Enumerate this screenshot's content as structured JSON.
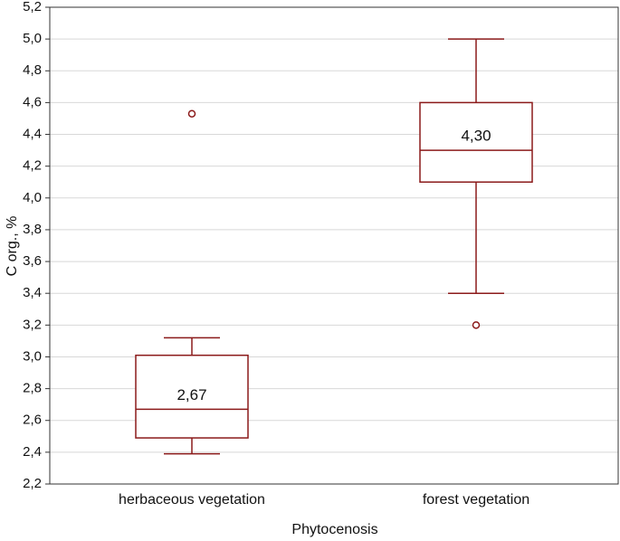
{
  "chart_data": {
    "type": "box",
    "x_label": "Phytocenosis",
    "y_label": "C org., %",
    "categories": [
      "herbaceous vegetation",
      "forest vegetation"
    ],
    "whisker_low": [
      2.39,
      3.4
    ],
    "q1": [
      2.49,
      4.1
    ],
    "values": [
      2.67,
      4.3
    ],
    "value_labels": [
      "2,67",
      "4,30"
    ],
    "q3": [
      3.01,
      4.6
    ],
    "whisker_high": [
      3.12,
      5.0
    ],
    "outliers": [
      [
        4.53
      ],
      [
        3.2
      ]
    ],
    "color": "#8b1a1a",
    "grid": true,
    "ylim": [
      2.2,
      5.2
    ],
    "yticks": [
      {
        "value": 2.2,
        "label": "2,2"
      },
      {
        "value": 2.4,
        "label": "2,4"
      },
      {
        "value": 2.6,
        "label": "2,6"
      },
      {
        "value": 2.8,
        "label": "2,8"
      },
      {
        "value": 3.0,
        "label": "3,0"
      },
      {
        "value": 3.2,
        "label": "3,2"
      },
      {
        "value": 3.4,
        "label": "3,4"
      },
      {
        "value": 3.6,
        "label": "3,6"
      },
      {
        "value": 3.8,
        "label": "3,8"
      },
      {
        "value": 4.0,
        "label": "4,0"
      },
      {
        "value": 4.2,
        "label": "4,2"
      },
      {
        "value": 4.4,
        "label": "4,4"
      },
      {
        "value": 4.6,
        "label": "4,6"
      },
      {
        "value": 4.8,
        "label": "4,8"
      },
      {
        "value": 5.0,
        "label": "5,0"
      },
      {
        "value": 5.2,
        "label": "5,2"
      }
    ]
  }
}
